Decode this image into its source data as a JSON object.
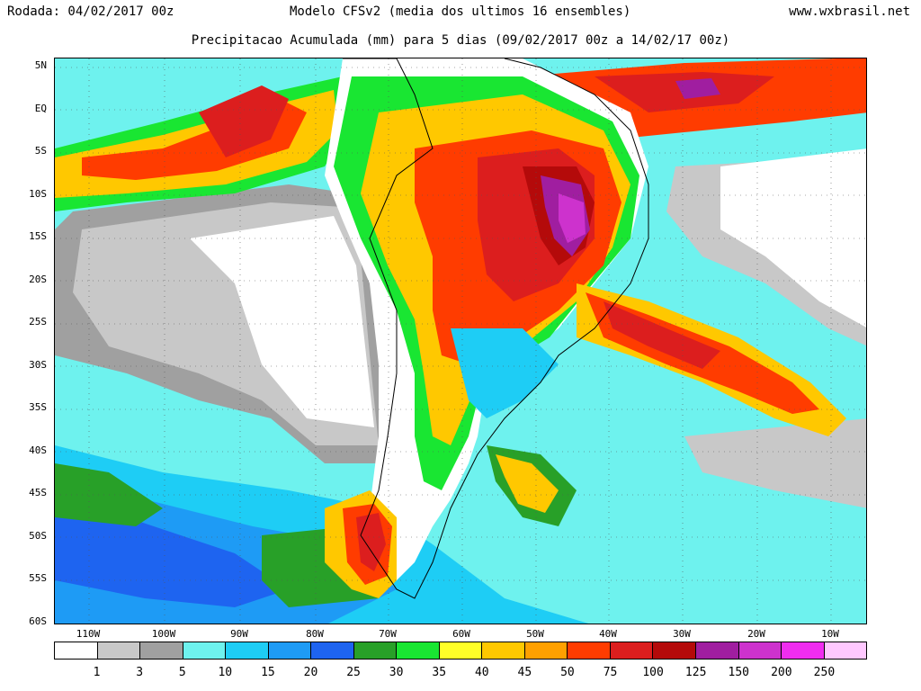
{
  "header": {
    "run": "Rodada: 04/02/2017 00z",
    "model": "Modelo CFSv2 (media dos ultimos 16 ensembles)",
    "site": "www.wxbrasil.net",
    "title": "Precipitacao Acumulada (mm) para 5 dias (09/02/2017 00z a 14/02/17 00z)"
  },
  "map": {
    "lat_labels": [
      "5N",
      "EQ",
      "5S",
      "10S",
      "15S",
      "20S",
      "25S",
      "30S",
      "35S",
      "40S",
      "45S",
      "50S",
      "55S",
      "60S"
    ],
    "lon_labels": [
      "110W",
      "100W",
      "90W",
      "80W",
      "70W",
      "60W",
      "50W",
      "40W",
      "30W",
      "20W",
      "10W"
    ]
  },
  "legend": {
    "colors": [
      "#ffffff",
      "#c8c8c8",
      "#a0a0a0",
      "#6ef2ee",
      "#1ecdf5",
      "#1e9bf5",
      "#1e64f0",
      "#28a028",
      "#19e632",
      "#ffff28",
      "#ffc800",
      "#ffa000",
      "#ff3c00",
      "#dc1e1e",
      "#b40a0a",
      "#a01ea0",
      "#cd32cd",
      "#f02df0",
      "#ffc8ff"
    ],
    "labels": [
      "1",
      "3",
      "5",
      "10",
      "15",
      "20",
      "25",
      "30",
      "35",
      "40",
      "45",
      "50",
      "75",
      "100",
      "125",
      "150",
      "200",
      "250"
    ]
  }
}
